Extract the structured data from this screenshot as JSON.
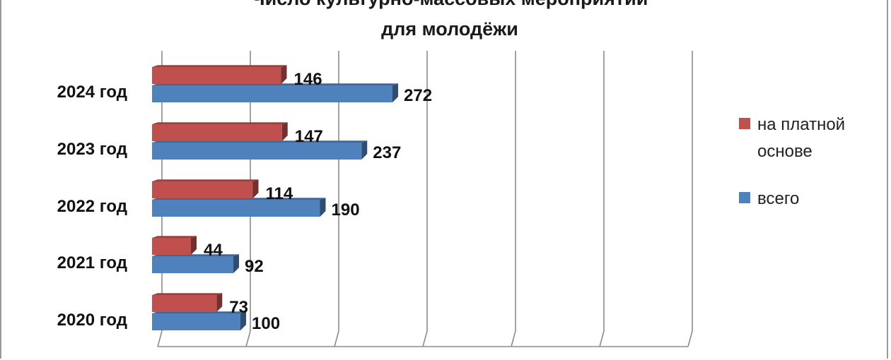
{
  "chart_data": {
    "type": "bar",
    "orientation": "horizontal",
    "title_lines": [
      "Число культурно-массовых мероприятий",
      "для молодёжи"
    ],
    "categories": [
      "2024 год",
      "2023 год",
      "2022 год",
      "2021 год",
      "2020 год"
    ],
    "series": [
      {
        "name_lines": [
          "на платной",
          "основе"
        ],
        "color": "#c0504d",
        "values": [
          146,
          147,
          114,
          44,
          73
        ]
      },
      {
        "name_lines": [
          "всего"
        ],
        "color": "#4f81bd",
        "values": [
          272,
          237,
          190,
          92,
          100
        ]
      }
    ],
    "xlim": [
      0,
      600
    ],
    "grid": true,
    "bar_style": "3d",
    "legend_position": "right"
  }
}
